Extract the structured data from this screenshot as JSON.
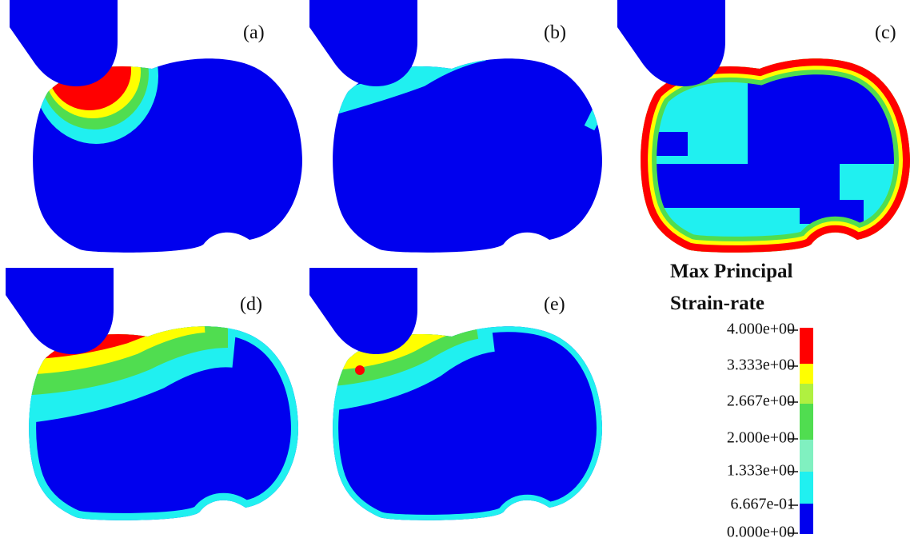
{
  "panels": [
    {
      "label": "(a)"
    },
    {
      "label": "(b)"
    },
    {
      "label": "(c)"
    },
    {
      "label": "(d)"
    },
    {
      "label": "(e)"
    }
  ],
  "legend": {
    "title": [
      "Max Principal",
      "Strain-rate"
    ],
    "labels": [
      "4.000e+00",
      "3.333e+00",
      "2.667e+00",
      "2.000e+00",
      "1.333e+00",
      "6.667e-01",
      "0.000e+00"
    ]
  }
}
